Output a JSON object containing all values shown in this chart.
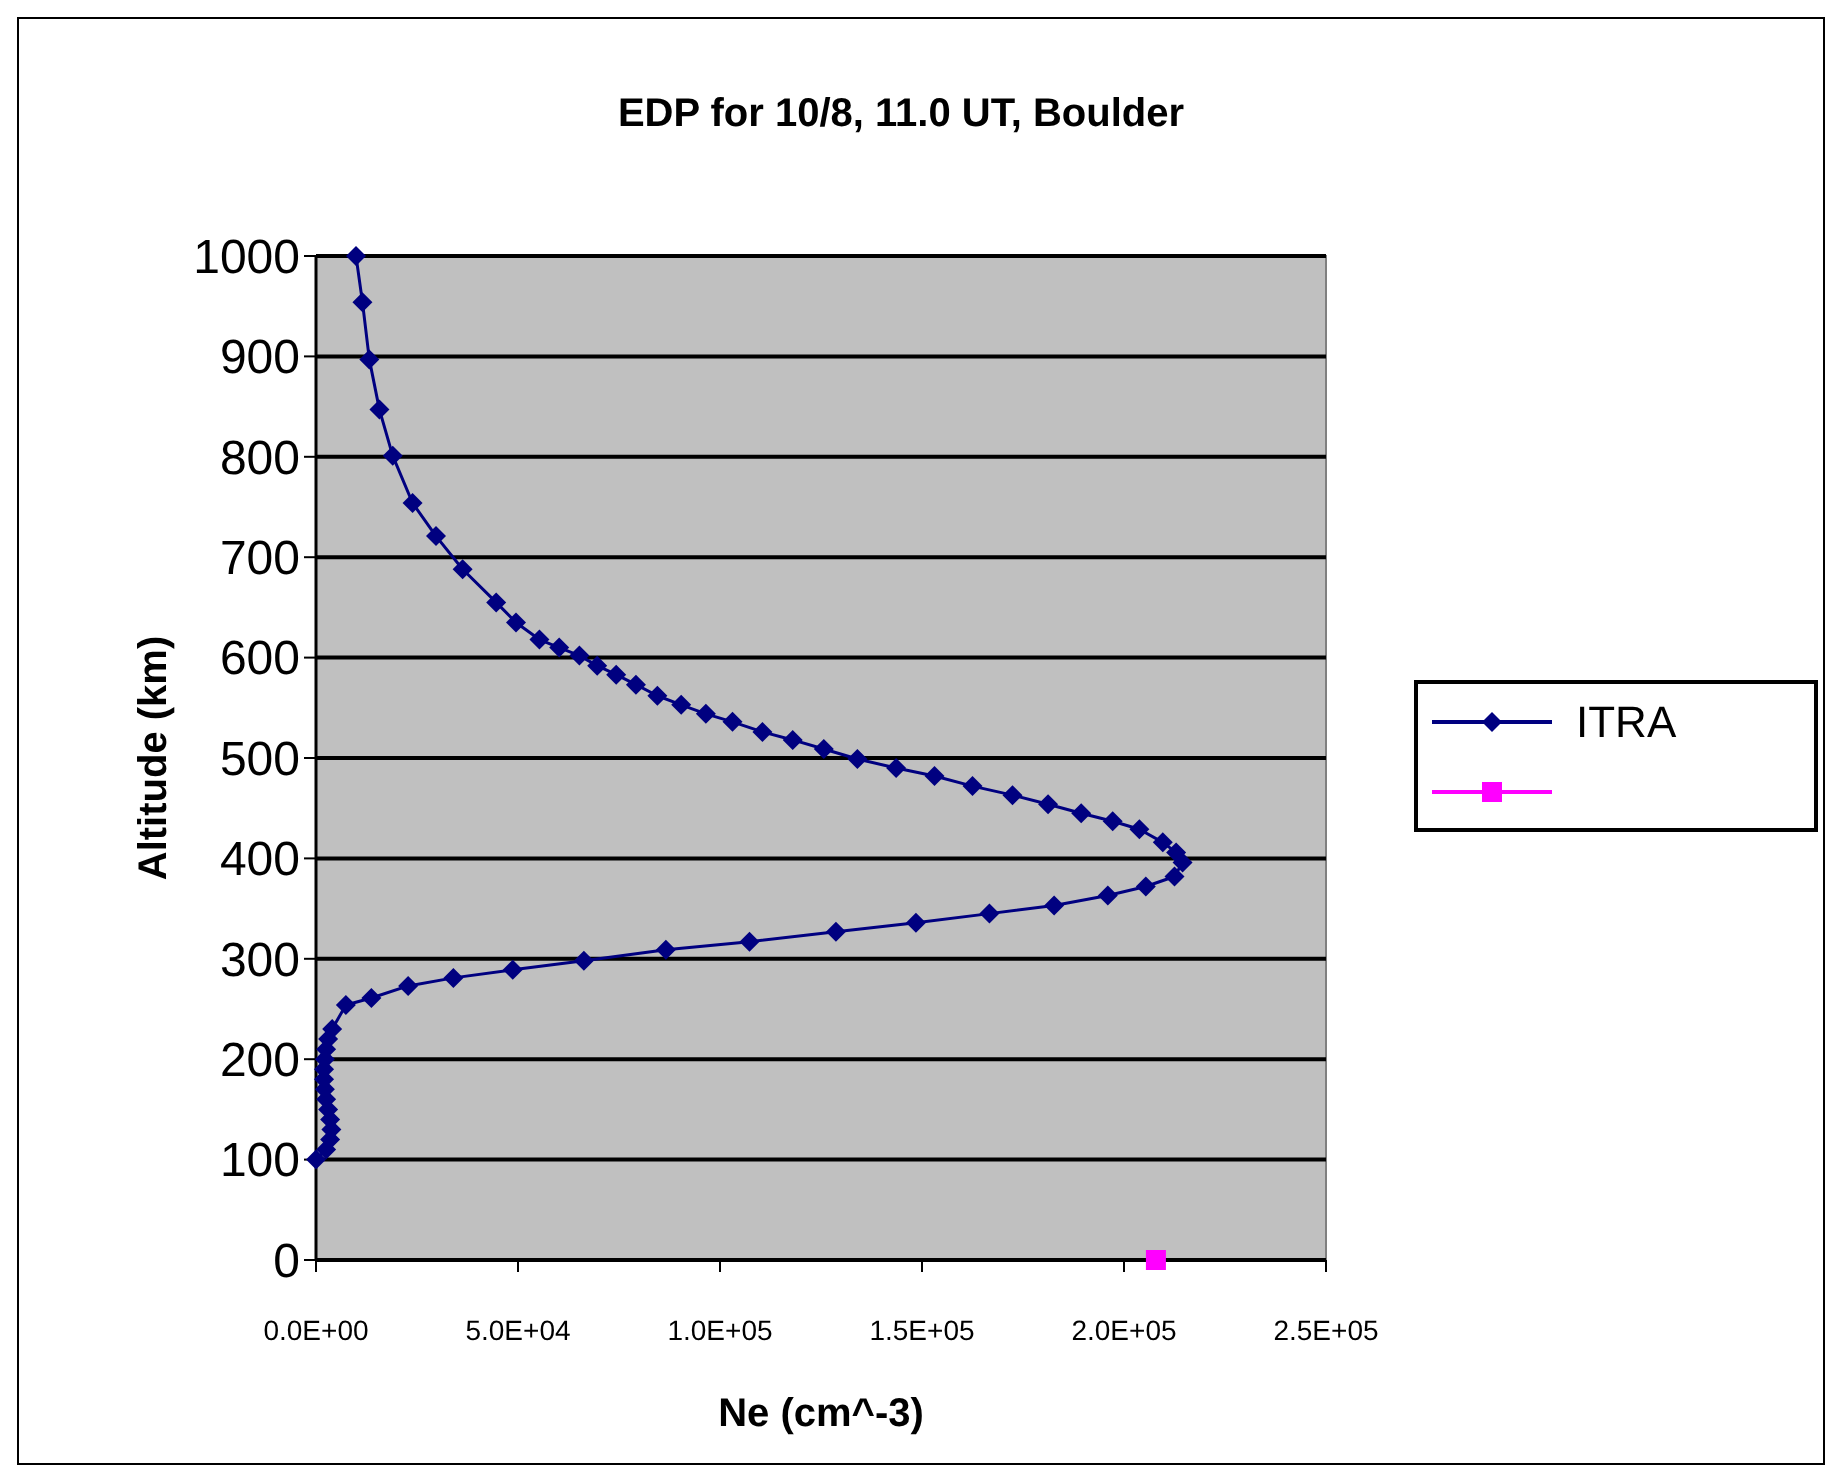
{
  "chart_data": {
    "type": "line",
    "title": "EDP for 10/8, 11.0 UT, Boulder",
    "xlabel": "Ne (cm^-3)",
    "ylabel": "Altitude (km)",
    "xlim": [
      0,
      250000
    ],
    "xticks": [
      {
        "value": 0,
        "label": "0.0E+00"
      },
      {
        "value": 50000,
        "label": "5.0E+04"
      },
      {
        "value": 100000,
        "label": "1.0E+05"
      },
      {
        "value": 150000,
        "label": "1.5E+05"
      },
      {
        "value": 200000,
        "label": "2.0E+05"
      },
      {
        "value": 250000,
        "label": "2.5E+05"
      }
    ],
    "ylim": [
      0,
      1000
    ],
    "yticks": [
      0,
      100,
      200,
      300,
      400,
      500,
      600,
      700,
      800,
      900,
      1000
    ],
    "grid": "y",
    "legend": "right",
    "series": [
      {
        "name": "ITRA",
        "color": "#000080",
        "marker": "diamond",
        "x": [
          0,
          2500,
          3500,
          3800,
          3500,
          3000,
          2500,
          2200,
          2000,
          2000,
          2200,
          2500,
          3000,
          4000,
          7400,
          13700,
          22800,
          34000,
          48700,
          66300,
          86600,
          107300,
          128700,
          148500,
          166700,
          182700,
          196000,
          205400,
          212500,
          214500,
          212900,
          209600,
          203800,
          197200,
          189400,
          181200,
          172400,
          162500,
          153100,
          143600,
          134000,
          125700,
          118000,
          110500,
          103100,
          96500,
          90400,
          84500,
          79200,
          74300,
          69600,
          65200,
          60200,
          55300,
          49500,
          44600,
          36300,
          29700,
          23900,
          19000,
          15700,
          13200,
          11500,
          9900
        ],
        "values": [
          100,
          110,
          120,
          130,
          140,
          150,
          160,
          170,
          180,
          190,
          200,
          210,
          220,
          230,
          254,
          261,
          273,
          281,
          289,
          298,
          309,
          317,
          327,
          336,
          345,
          353,
          363,
          372,
          382,
          396,
          406,
          416,
          429,
          437,
          445,
          454,
          463,
          472,
          482,
          490,
          499,
          509,
          518,
          526,
          536,
          544,
          553,
          562,
          573,
          583,
          592,
          602,
          610,
          618,
          635,
          655,
          688,
          721,
          754,
          801,
          847,
          897,
          954,
          1000
        ]
      },
      {
        "type": "scatter",
        "color": "#ff00ff",
        "marker": "square",
        "x": [
          207900
        ],
        "values": [
          0
        ]
      }
    ]
  }
}
